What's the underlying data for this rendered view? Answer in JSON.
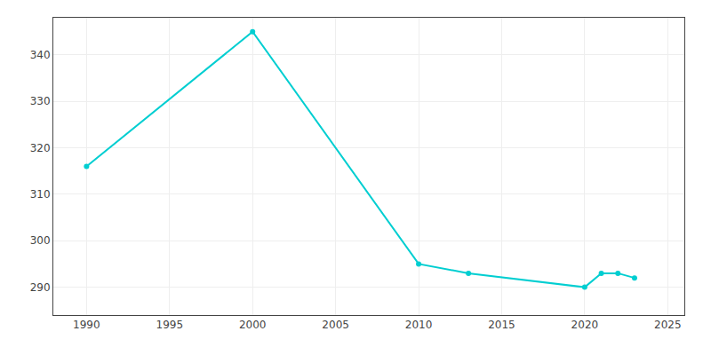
{
  "chart_data": {
    "type": "line",
    "x": [
      1990,
      2000,
      2010,
      2013,
      2020,
      2021,
      2022,
      2023
    ],
    "values": [
      316,
      345,
      295,
      293,
      290,
      293,
      293,
      292
    ],
    "color": "#00CED1",
    "marker": "circle",
    "xlim": [
      1988,
      2026
    ],
    "ylim": [
      284,
      348
    ],
    "xticks": [
      1990,
      1995,
      2000,
      2005,
      2010,
      2015,
      2020,
      2025
    ],
    "yticks": [
      290,
      300,
      310,
      320,
      330,
      340
    ],
    "grid": true
  }
}
